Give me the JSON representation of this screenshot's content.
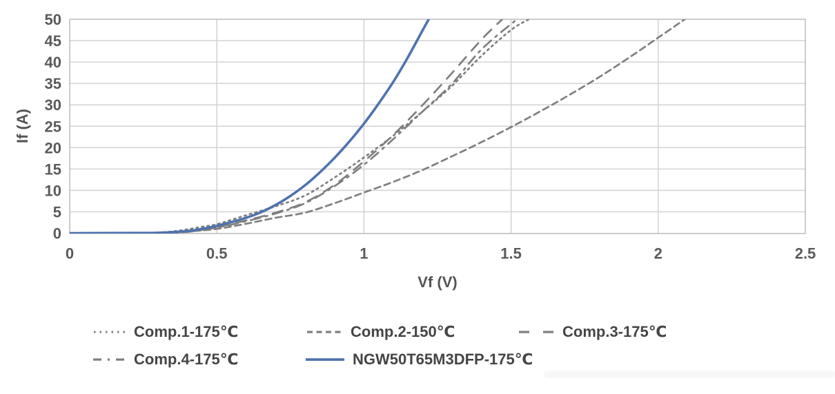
{
  "chart_data": {
    "type": "line",
    "title": "",
    "xlabel": "Vf (V)",
    "ylabel": "If (A)",
    "xlim": [
      0,
      2.5
    ],
    "ylim": [
      0,
      50
    ],
    "xticks": [
      0,
      0.5,
      1,
      1.5,
      2,
      2.5
    ],
    "yticks": [
      0,
      5,
      10,
      15,
      20,
      25,
      30,
      35,
      40,
      45,
      50
    ],
    "grid": true,
    "legend_position": "bottom",
    "colors": {
      "gray_series": "#7f7f7f",
      "blue_series": "#4e73ae",
      "gridline": "#d2d2d2",
      "plot_border": "#bfbfbf"
    },
    "series": [
      {
        "name": "Comp.1-175℃",
        "color": "#7f7f7f",
        "line_style": "dotted",
        "x": [
          0,
          0.25,
          0.3,
          0.35,
          0.4,
          0.45,
          0.5,
          0.6,
          0.7,
          0.8,
          0.9,
          1.0,
          1.1,
          1.2,
          1.3,
          1.4,
          1.5,
          1.56
        ],
        "y": [
          0,
          0.05,
          0.15,
          0.4,
          0.9,
          1.5,
          2.1,
          4.2,
          6.3,
          8.8,
          13,
          17.7,
          22.8,
          28.5,
          34.5,
          41.5,
          47.5,
          50
        ]
      },
      {
        "name": "Comp.2-150℃",
        "color": "#7f7f7f",
        "line_style": "dashed",
        "x": [
          0,
          0.3,
          0.4,
          0.5,
          0.6,
          0.7,
          0.8,
          0.9,
          1.0,
          1.1,
          1.2,
          1.3,
          1.4,
          1.5,
          1.6,
          1.7,
          1.8,
          1.9,
          2.0,
          2.09
        ],
        "y": [
          0,
          0.1,
          0.4,
          1.0,
          2.2,
          3.6,
          4.8,
          7.0,
          9.5,
          12.0,
          14.8,
          18.0,
          21.3,
          24.8,
          28.5,
          32.4,
          36.5,
          41.0,
          45.7,
          50
        ]
      },
      {
        "name": "Comp.3-175℃",
        "color": "#7f7f7f",
        "line_style": "long-dash",
        "x": [
          0,
          0.3,
          0.4,
          0.5,
          0.6,
          0.7,
          0.8,
          0.9,
          1.0,
          1.1,
          1.2,
          1.3,
          1.4,
          1.47
        ],
        "y": [
          0,
          0.1,
          0.35,
          1.4,
          3.0,
          4.8,
          7.2,
          11.3,
          16.8,
          23.0,
          30.0,
          37.5,
          45.3,
          50
        ]
      },
      {
        "name": "Comp.4-175℃",
        "color": "#7f7f7f",
        "line_style": "dash-dot",
        "x": [
          0,
          0.3,
          0.4,
          0.5,
          0.6,
          0.7,
          0.8,
          0.9,
          1.0,
          1.1,
          1.2,
          1.3,
          1.4,
          1.52
        ],
        "y": [
          0,
          0.1,
          0.3,
          1.3,
          2.8,
          4.6,
          7.0,
          11.0,
          16.0,
          22.0,
          28.5,
          35.0,
          43.0,
          50
        ]
      },
      {
        "name": "NGW50T65M3DFP-175℃",
        "color": "#4e73ae",
        "line_style": "solid",
        "x": [
          0,
          0.25,
          0.3,
          0.35,
          0.4,
          0.45,
          0.5,
          0.55,
          0.6,
          0.65,
          0.7,
          0.75,
          0.8,
          0.85,
          0.9,
          0.95,
          1.0,
          1.05,
          1.1,
          1.15,
          1.2,
          1.22
        ],
        "y": [
          0,
          0.05,
          0.1,
          0.25,
          0.5,
          1.0,
          1.7,
          2.6,
          3.6,
          4.9,
          6.6,
          8.7,
          11.2,
          14.2,
          17.6,
          21.4,
          25.6,
          30.3,
          35.4,
          41.2,
          47.5,
          50
        ]
      }
    ]
  }
}
